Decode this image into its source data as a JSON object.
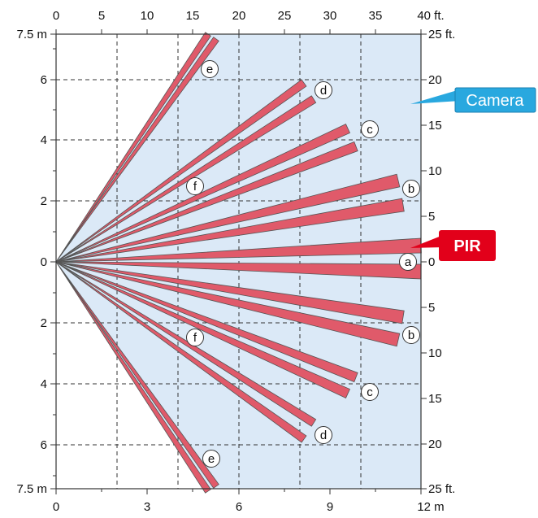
{
  "diagram": {
    "top_ft_ticks": [
      "0",
      "5",
      "10",
      "15",
      "20",
      "25",
      "30",
      "35",
      "40 ft."
    ],
    "bottom_m_ticks": [
      "0",
      "3",
      "6",
      "9",
      "12 m"
    ],
    "left_m_ticks": [
      "7.5 m",
      "6",
      "4",
      "2",
      "0",
      "2",
      "4",
      "6",
      "7.5 m"
    ],
    "right_ft_ticks": [
      "25 ft.",
      "20",
      "15",
      "10",
      "5",
      "0",
      "5",
      "10",
      "15",
      "20",
      "25 ft."
    ],
    "camera_label": "Camera",
    "pir_label": "PIR",
    "zone_labels": [
      "e",
      "d",
      "c",
      "f",
      "b",
      "a",
      "b",
      "f",
      "c",
      "d",
      "e"
    ],
    "colors": {
      "beam_fill": "#e05a6a",
      "beam_stroke": "#555555",
      "coverage_fill": "#dbe9f7",
      "camera_callout": "#29a8df",
      "pir_callout": "#e2001a",
      "grid": "#333333"
    }
  }
}
